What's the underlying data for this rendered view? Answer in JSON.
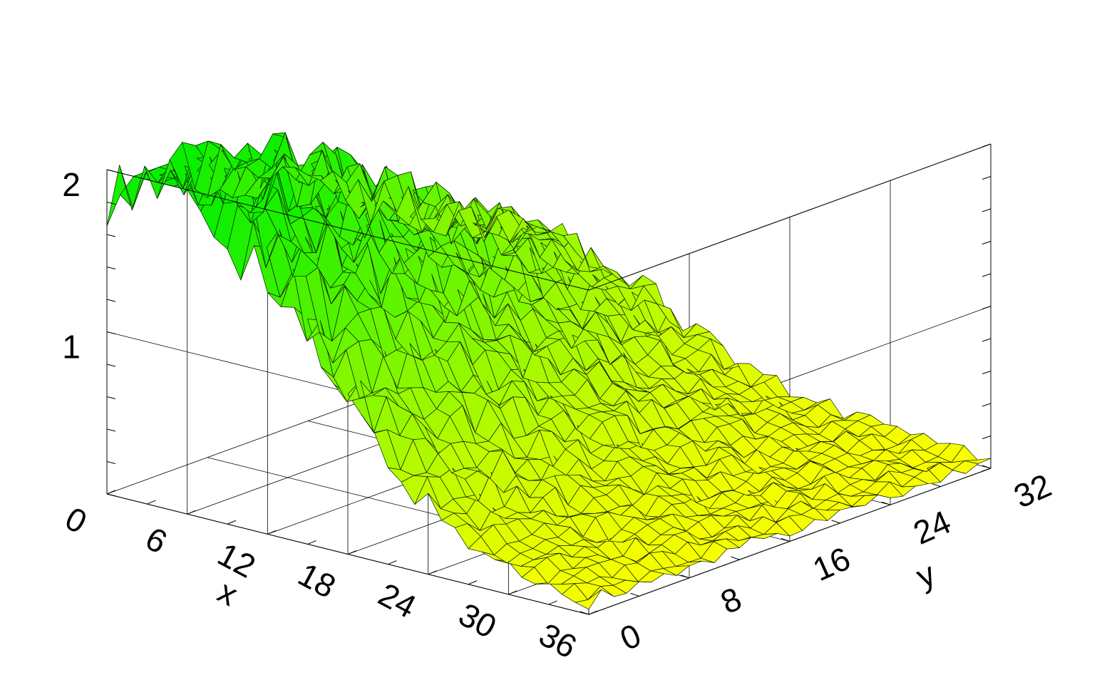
{
  "chart_data": {
    "type": "surface",
    "title": "",
    "xlabel": "x",
    "ylabel": "y",
    "zlabel": "",
    "x_range": [
      0,
      36
    ],
    "y_range": [
      0,
      32
    ],
    "z_range": [
      0,
      2
    ],
    "x_ticks": [
      "0",
      "6",
      "12",
      "18",
      "24",
      "30",
      "36"
    ],
    "y_ticks": [
      "0",
      "8",
      "16",
      "24",
      "32"
    ],
    "z_ticks": [
      "1",
      "2"
    ],
    "grid": true,
    "colormap": {
      "low": "#ffff00",
      "high": "#00ee00"
    },
    "surface_model": {
      "description": "Gaussian ridge peaking near x=0..6, y=0, decaying toward x=36, y=32 with small noise",
      "peak": 2.0,
      "near_x0_y32": 1.0,
      "near_x36_y0": 0.15,
      "near_x36_y32": 0.05
    }
  }
}
